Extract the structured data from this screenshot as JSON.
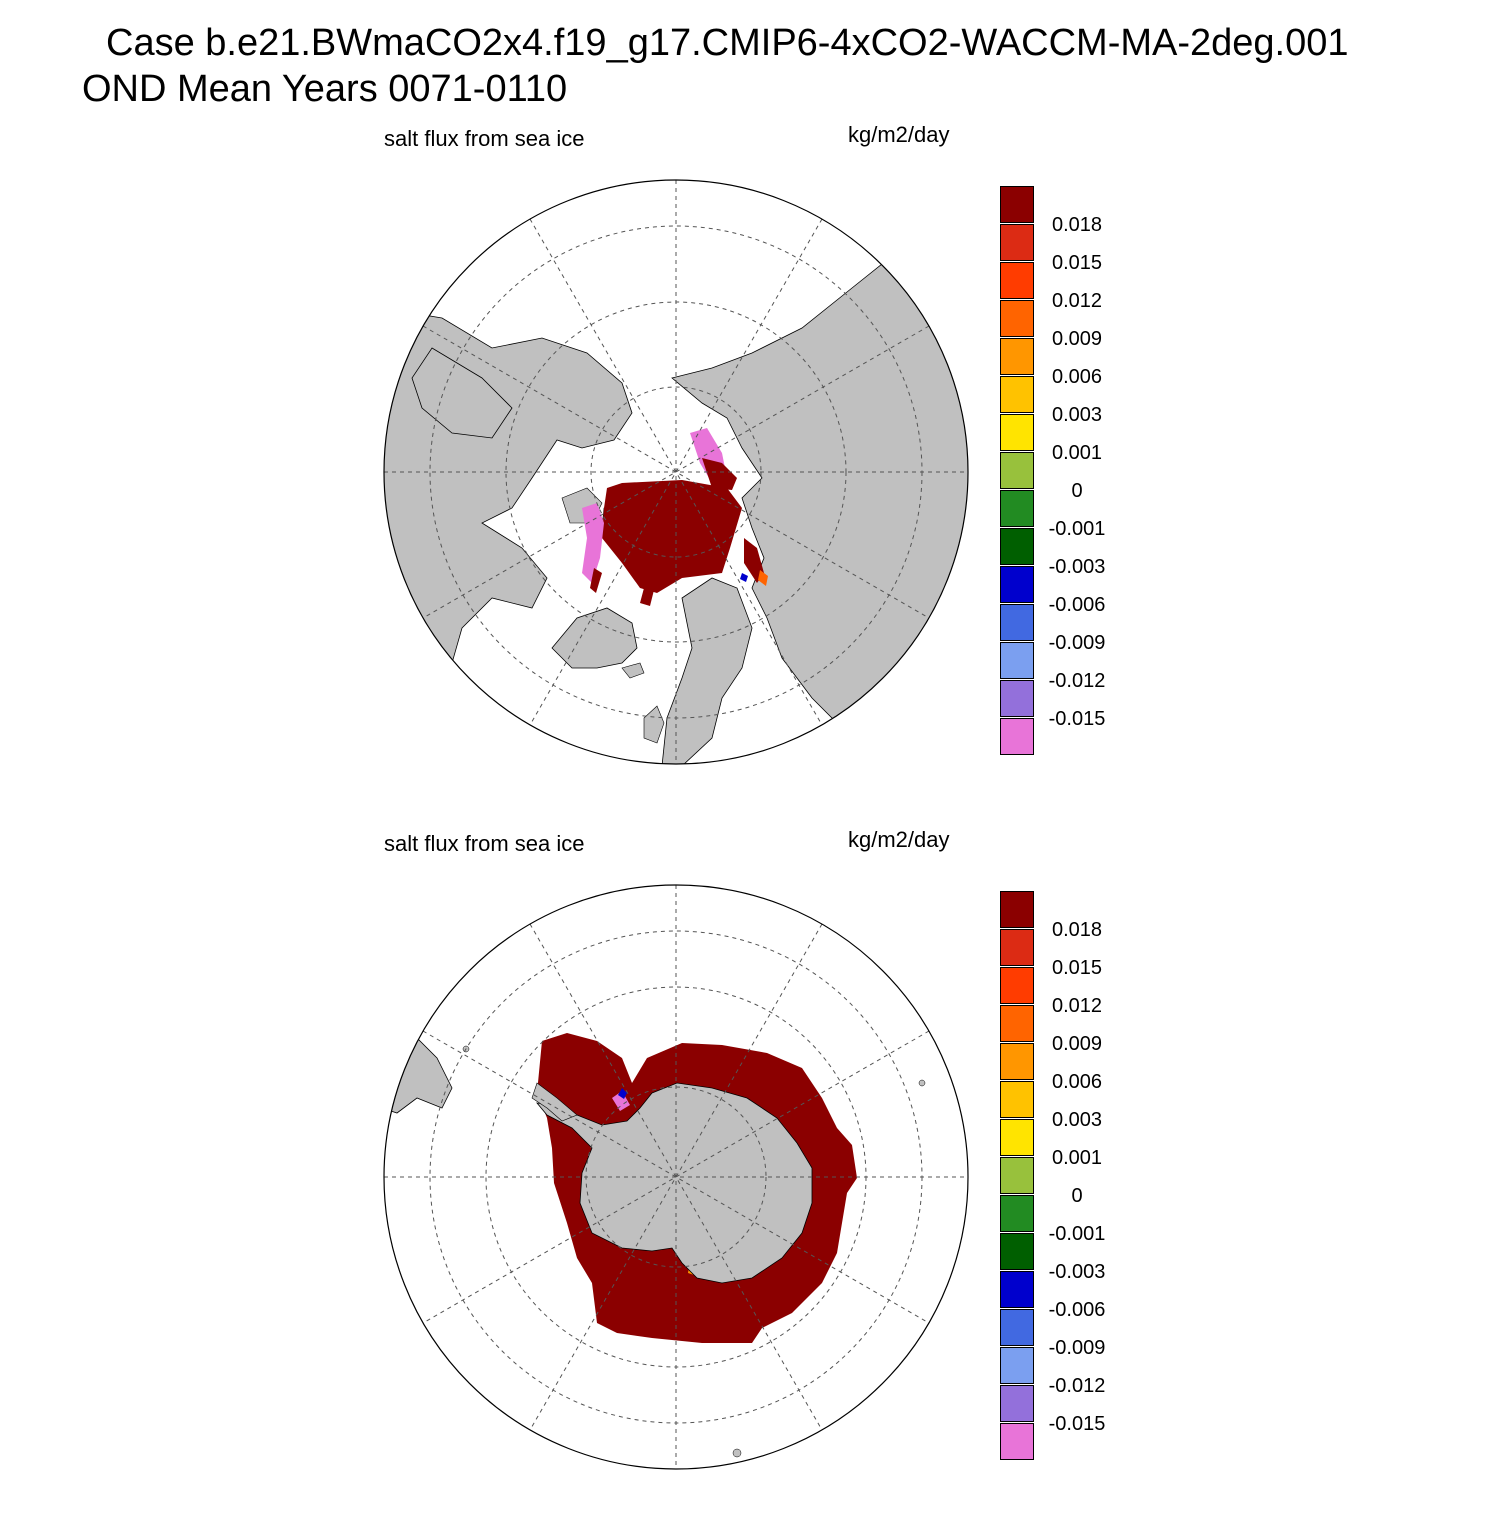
{
  "header": {
    "case_title": "Case b.e21.BWmaCO2x4.f19_g17.CMIP6-4xCO2-WACCM-MA-2deg.001",
    "season_title": "OND Mean   Years 0071-0110"
  },
  "panels": [
    {
      "id": "north",
      "hemisphere": "Northern",
      "variable": "salt flux from sea ice",
      "units": "kg/m2/day"
    },
    {
      "id": "south",
      "hemisphere": "Southern",
      "variable": "salt flux from sea ice",
      "units": "kg/m2/day"
    }
  ],
  "colorbar": {
    "levels": [
      "0.018",
      "0.015",
      "0.012",
      "0.009",
      "0.006",
      "0.003",
      "0.001",
      "0",
      "-0.001",
      "-0.003",
      "-0.006",
      "-0.009",
      "-0.012",
      "-0.015"
    ],
    "colors": [
      "#8b0000",
      "#dc2b14",
      "#ff3c00",
      "#ff6400",
      "#ff9600",
      "#ffc200",
      "#ffe400",
      "#98c13c",
      "#228b22",
      "#005f00",
      "#0000cd",
      "#4169e1",
      "#7b9ff0",
      "#9370db",
      "#e874d8"
    ]
  },
  "map_colors": {
    "land": "#c0c0c0",
    "ocean": "#ffffff",
    "grid": "#555555"
  }
}
